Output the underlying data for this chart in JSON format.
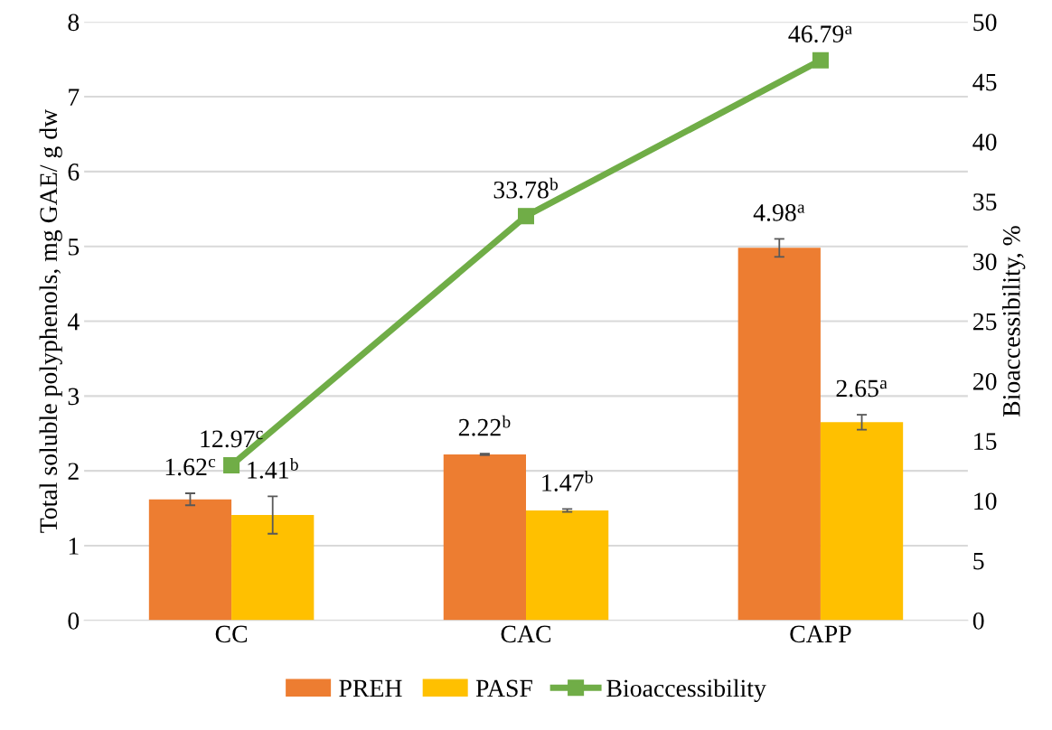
{
  "chart_data": {
    "type": "bar",
    "categories": [
      "CC",
      "CAC",
      "CAPP"
    ],
    "ylabel": "Total soluble polyphenols, mg GAE/ g dw",
    "y2label": "Bioaccessibility, %",
    "ylim": [
      0,
      8
    ],
    "yticks": [
      0,
      1,
      2,
      3,
      4,
      5,
      6,
      7,
      8
    ],
    "y2lim": [
      0,
      50
    ],
    "y2ticks": [
      0,
      5,
      10,
      15,
      20,
      25,
      30,
      35,
      40,
      45,
      50
    ],
    "grid": "y",
    "legend": "bottom",
    "series": [
      {
        "name": "PREH",
        "color": "#ed7d31",
        "values": [
          1.62,
          2.22,
          4.98
        ],
        "errors": [
          0.08,
          0.01,
          0.12
        ],
        "value_labels": [
          "1.62$^{c}$",
          "2.22$^{b}$",
          "4.98$^{a}$"
        ]
      },
      {
        "name": "PASF",
        "color": "#ffc000",
        "values": [
          1.41,
          1.47,
          2.65
        ],
        "errors": [
          0.25,
          0.02,
          0.1
        ],
        "value_labels": [
          "1.41$^{b}$",
          "1.47$^{b}$",
          "2.65$^{a}$"
        ]
      },
      {
        "name": "Bioaccessibility",
        "type": "line",
        "axis": "y2",
        "color": "#70ad47",
        "marker": "square",
        "line_style": "solid",
        "values": [
          12.97,
          33.78,
          46.79
        ],
        "value_labels": [
          "12.97$^{c}$",
          "33.78$^{b}$",
          "46.79$^{a}$"
        ]
      }
    ]
  }
}
